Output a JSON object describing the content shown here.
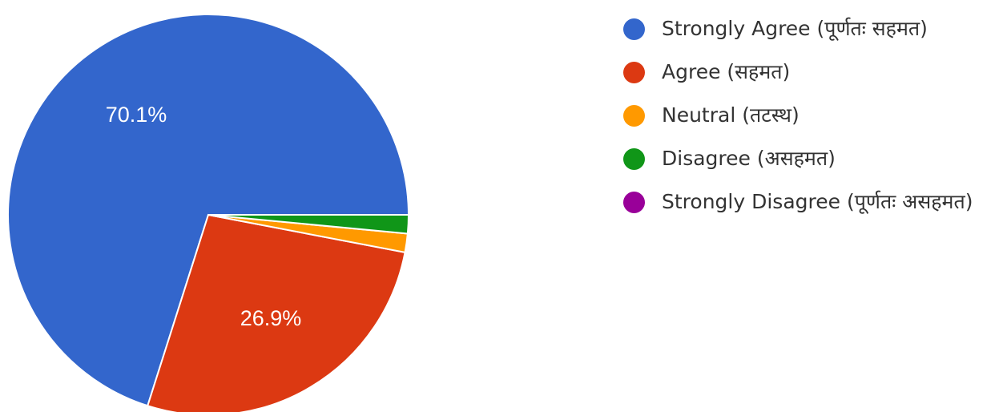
{
  "chart_data": {
    "type": "pie",
    "title": "",
    "start_angle_deg": 0,
    "direction": "counterclockwise",
    "slices": [
      {
        "label": "Strongly Agree (पूर्णतः सहमत)",
        "value": 70.1,
        "data_label": "70.1%",
        "color": "#3366cc"
      },
      {
        "label": "Agree (सहमत)",
        "value": 26.9,
        "data_label": "26.9%",
        "color": "#dc3912"
      },
      {
        "label": "Neutral (तटस्थ)",
        "value": 1.5,
        "data_label": "",
        "color": "#ff9900"
      },
      {
        "label": "Disagree (असहमत)",
        "value": 1.5,
        "data_label": "",
        "color": "#109618"
      },
      {
        "label": "Strongly Disagree (पूर्णतः असहमत)",
        "value": 0,
        "data_label": "",
        "color": "#990099"
      }
    ],
    "legend_position": "right"
  }
}
